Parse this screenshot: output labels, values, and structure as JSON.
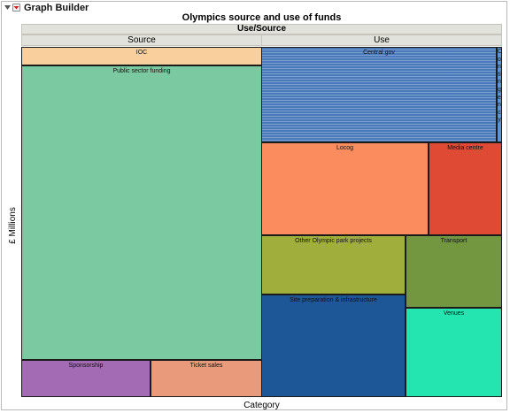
{
  "window": {
    "title": "Graph Builder"
  },
  "chart_data": {
    "type": "treemap",
    "title": "Olympics source and use of funds",
    "group_title": "Use/Source",
    "xlabel": "Category",
    "ylabel": "£ Millions",
    "groups": [
      {
        "name": "Source",
        "items": [
          {
            "label": "IOC",
            "value": 560,
            "color": "#f9cf9d"
          },
          {
            "label": "Public sector funding",
            "value": 8800,
            "color": "#7bc9a0"
          },
          {
            "label": "Sponsorship",
            "value": 600,
            "color": "#a26bb3"
          },
          {
            "label": "Ticket sales",
            "value": 520,
            "color": "#e89a7b"
          }
        ]
      },
      {
        "name": "Use",
        "items": [
          {
            "label": "Central gov",
            "value": 2900,
            "color": "#4b7abb",
            "hatched": true
          },
          {
            "label": "Contingency",
            "value": 60,
            "color": "#5b95d6",
            "vertical": true
          },
          {
            "label": "Locog",
            "value": 2000,
            "color": "#fa8c5d"
          },
          {
            "label": "Media centre",
            "value": 880,
            "color": "#df4a35"
          },
          {
            "label": "Other Olympic park projects",
            "value": 1100,
            "color": "#a0af3b"
          },
          {
            "label": "Transport",
            "value": 900,
            "color": "#739741"
          },
          {
            "label": "Site preparation & infrastructure",
            "value": 1920,
            "color": "#1d5798"
          },
          {
            "label": "Venues",
            "value": 1110,
            "color": "#24e5b0"
          }
        ]
      }
    ]
  }
}
